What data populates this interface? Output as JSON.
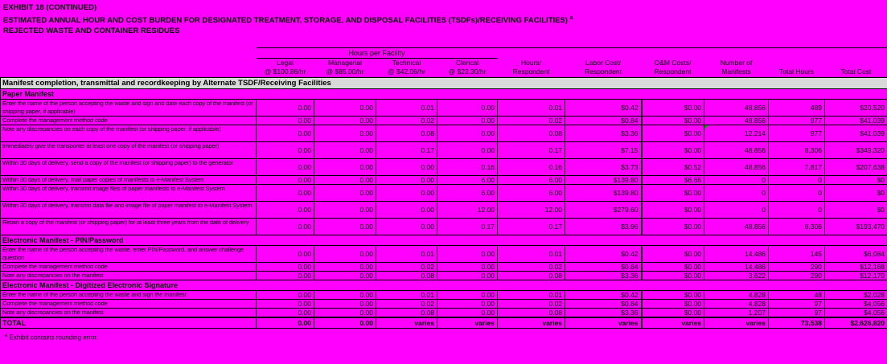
{
  "page": {
    "title_line1": "EXHIBIT 18 (CONTINUED)",
    "title_line2": "ESTIMATED ANNUAL HOUR AND COST BURDEN FOR DESIGNATED TREATMENT, STORAGE, AND DISPOSAL FACILITIES (TSDFs)/RECEIVING FACILITIES)",
    "title_footnote_marker": "a",
    "title_line3": "REJECTED WASTE AND CONTAINER RESIDUES",
    "footnote_marker": "a",
    "footnote_text": "Exhibit contains rounding error.",
    "background_color": "#ff00ff",
    "band_color": "#d9d9d9",
    "flag_color": "#00a000"
  },
  "header": {
    "group_label": "Hours per Facility",
    "columns": [
      {
        "line1": "Legal",
        "line2": "@ $100.86/hr"
      },
      {
        "line1": "Managerial",
        "line2": "@ $85.00/hr"
      },
      {
        "line1": "Technical",
        "line2": "@ $42.06/hr"
      },
      {
        "line1": "Clerical",
        "line2": "@ $23.30/hr"
      },
      {
        "line1": "Hours/",
        "line2": "Respondent"
      },
      {
        "line1": "Labor Cost/",
        "line2": "Respondent"
      },
      {
        "line1": "O&M Costs/",
        "line2": "Respondent"
      },
      {
        "line1": "Number of",
        "line2": "Manifests"
      },
      {
        "line1": "",
        "line2": "Total Hours"
      },
      {
        "line1": "",
        "line2": "Total Cost"
      }
    ]
  },
  "table": {
    "band_label": "Manifest completion, transmittal and recordkeeping by Alternate TSDF/Receiving Facilities",
    "sections": [
      {
        "label": "Paper Manifest",
        "rows": [
          {
            "h": 2,
            "label": "Enter the name of the person accepting the waste and sign and date each copy of the manifest (or shipping paper, if applicable)",
            "values": [
              "0.00",
              "0.00",
              "0.01",
              "0.00",
              "0.01",
              "$0.42",
              "$0.00",
              "48,856",
              "489",
              "$20,520"
            ]
          },
          {
            "h": 1,
            "label": "Complete the management method code",
            "values": [
              "0.00",
              "0.00",
              "0.02",
              "0.00",
              "0.02",
              "$0.84",
              "$0.00",
              "48,856",
              "977",
              "$41,039"
            ]
          },
          {
            "h": 2,
            "label": "Note any discrepancies on each copy of the manifest (or shipping paper, if applicable)",
            "values": [
              "0.00",
              "0.00",
              "0.08",
              "0.00",
              "0.08",
              "$3.36",
              "$0.00",
              "12,214",
              "977",
              "$41,039"
            ],
            "marker": 7
          },
          {
            "h": 2,
            "label": "Immediately give the transporter at least one copy of the manifest (or shipping paper)",
            "values": [
              "0.00",
              "0.00",
              "0.17",
              "0.00",
              "0.17",
              "$7.15",
              "$0.00",
              "48,856",
              "8,306",
              "$349,320"
            ]
          },
          {
            "h": 2,
            "label": "Within 30 days of delivery, send a copy of the manifest (or shipping paper) to the generator",
            "values": [
              "0.00",
              "0.00",
              "0.00",
              "0.16",
              "0.16",
              "$3.73",
              "$0.52",
              "48,856",
              "7,817",
              "$207,638"
            ]
          },
          {
            "h": 1,
            "label": "Within 30 days of delivery, mail paper copies of manifests to e-Manifest System",
            "values": [
              "0.00",
              "0.00",
              "0.00",
              "6.00",
              "6.00",
              "$139.80",
              "$6.65",
              "0",
              "0",
              "$0"
            ]
          },
          {
            "h": 2,
            "label": "Within 30 days of delivery, transmit image files of paper manifests to e-Manifest System",
            "values": [
              "0.00",
              "0.00",
              "0.00",
              "6.00",
              "6.00",
              "$139.80",
              "$0.00",
              "0",
              "0",
              "$0"
            ]
          },
          {
            "h": 2,
            "label": "Within 30 days of delivery, transmit data file and image file of paper manifest to e-Manifest System",
            "values": [
              "0.00",
              "0.00",
              "0.00",
              "12.00",
              "12.00",
              "$279.60",
              "$0.00",
              "0",
              "0",
              "$0"
            ]
          },
          {
            "h": 2,
            "label": "Retain a copy of the manifest (or shipping paper) for at least three years from the date of delivery",
            "values": [
              "0.00",
              "0.00",
              "0.00",
              "0.17",
              "0.17",
              "$3.96",
              "$0.00",
              "48,856",
              "8,306",
              "$193,470"
            ]
          }
        ]
      },
      {
        "label": "Electronic Manifest - PIN/Password",
        "rows": [
          {
            "h": 2,
            "label": "Enter the name of the person accepting the waste, enter PIN/Password, and answer challenge question",
            "values": [
              "0.00",
              "0.00",
              "0.01",
              "0.00",
              "0.01",
              "$0.42",
              "$0.00",
              "14,486",
              "145",
              "$6,084"
            ]
          },
          {
            "h": 1,
            "label": "Complete the management method code",
            "values": [
              "0.00",
              "0.00",
              "0.02",
              "0.00",
              "0.02",
              "$0.84",
              "$0.00",
              "14,486",
              "290",
              "$12,168"
            ]
          },
          {
            "h": 1,
            "label": "Note any discrepancies on the manifest",
            "values": [
              "0.00",
              "0.00",
              "0.08",
              "0.00",
              "0.08",
              "$3.36",
              "$0.00",
              "3,622",
              "290",
              "$12,170"
            ]
          }
        ]
      },
      {
        "label": "Electronic Manifest - Digitized Electronic Signature",
        "rows": [
          {
            "h": 1,
            "label": "Enter the name of the person accepting the waste and sign the manifest",
            "values": [
              "0.00",
              "0.00",
              "0.01",
              "0.00",
              "0.01",
              "$0.42",
              "$0.00",
              "4,828",
              "48",
              "$2,028"
            ]
          },
          {
            "h": 1,
            "label": "Complete the management method code",
            "values": [
              "0.00",
              "0.00",
              "0.02",
              "0.00",
              "0.02",
              "$0.84",
              "$0.00",
              "4,828",
              "97",
              "$4,056"
            ]
          },
          {
            "h": 1,
            "label": "Note any discrepancies on the manifest",
            "values": [
              "0.00",
              "0.00",
              "0.08",
              "0.00",
              "0.08",
              "$3.36",
              "$0.00",
              "1,207",
              "97",
              "$4,056"
            ]
          }
        ]
      }
    ],
    "total": {
      "label": "TOTAL",
      "values": [
        "0.00",
        "0.00",
        "varies",
        "varies",
        "varies",
        "varies",
        "varies",
        "varies",
        "73,538",
        "$2,626,820"
      ]
    }
  }
}
